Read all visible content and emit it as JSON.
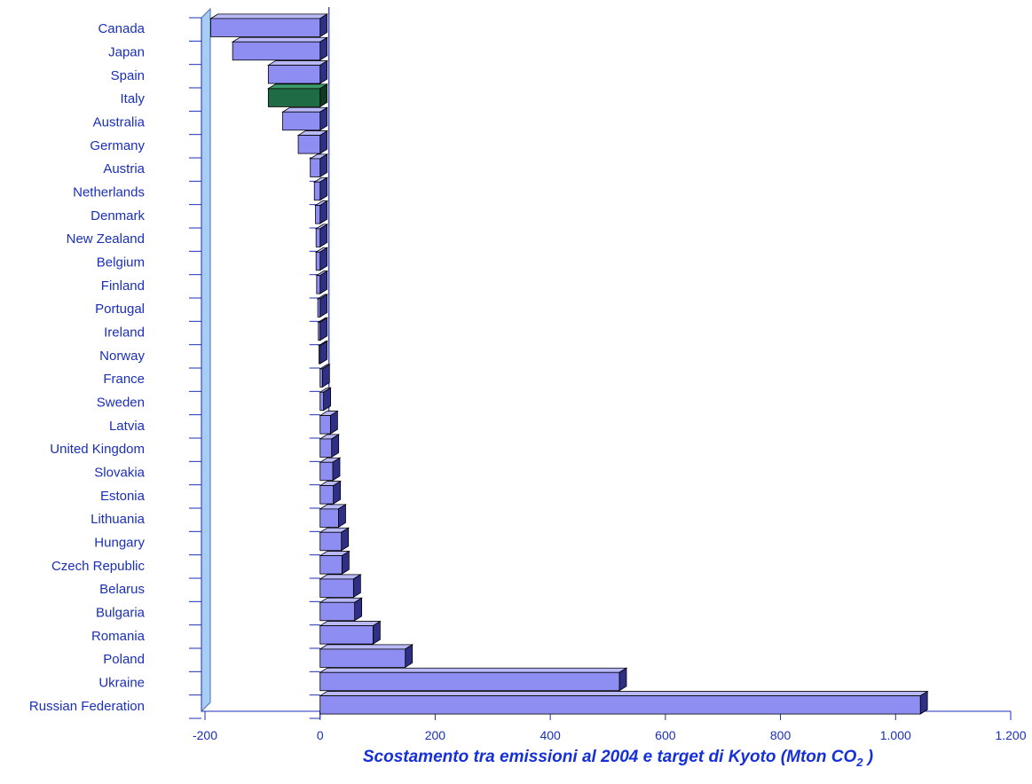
{
  "chart_data": {
    "type": "bar",
    "orientation": "horizontal",
    "title": "",
    "xlabel": "Scostamento tra emissioni al 2004 e target di Kyoto (Mton CO",
    "xlabel_subscript": "2",
    "xlabel_suffix": " )",
    "xlim": [
      -200,
      1200
    ],
    "xticks": [
      -200,
      0,
      200,
      400,
      600,
      800,
      1000,
      1200
    ],
    "xtick_labels": [
      "-200",
      "0",
      "200",
      "400",
      "600",
      "800",
      "1.000",
      "1.200"
    ],
    "categories": [
      "Canada",
      "Japan",
      "Spain",
      "Italy",
      "Australia",
      "Germany",
      "Austria",
      "Netherlands",
      "Denmark",
      "New Zealand",
      "Belgium",
      "Finland",
      "Portugal",
      "Ireland",
      "Norway",
      "France",
      "Sweden",
      "Latvia",
      "United Kingdom",
      "Slovakia",
      "Estonia",
      "Lithuania",
      "Hungary",
      "Czech Republic",
      "Belarus",
      "Bulgaria",
      "Romania",
      "Poland",
      "Ukraine",
      "Russian Federation"
    ],
    "values": [
      -190,
      -152,
      -90,
      -90,
      -65,
      -38,
      -17,
      -10,
      -8,
      -7,
      -7,
      -6,
      -4,
      -3,
      -2,
      4,
      6,
      18,
      20,
      22,
      23,
      32,
      37,
      38,
      58,
      60,
      92,
      148,
      520,
      1043
    ],
    "highlight_category": "Italy",
    "colors": {
      "bar": "#8d8df2",
      "bar_top": "#b9b9fa",
      "bar_dark": "#2f2f86",
      "highlight": "#1f6b45",
      "axis": "#1a2fb8",
      "wall": "#a8cdf5"
    },
    "grid": false,
    "legend": "none"
  }
}
